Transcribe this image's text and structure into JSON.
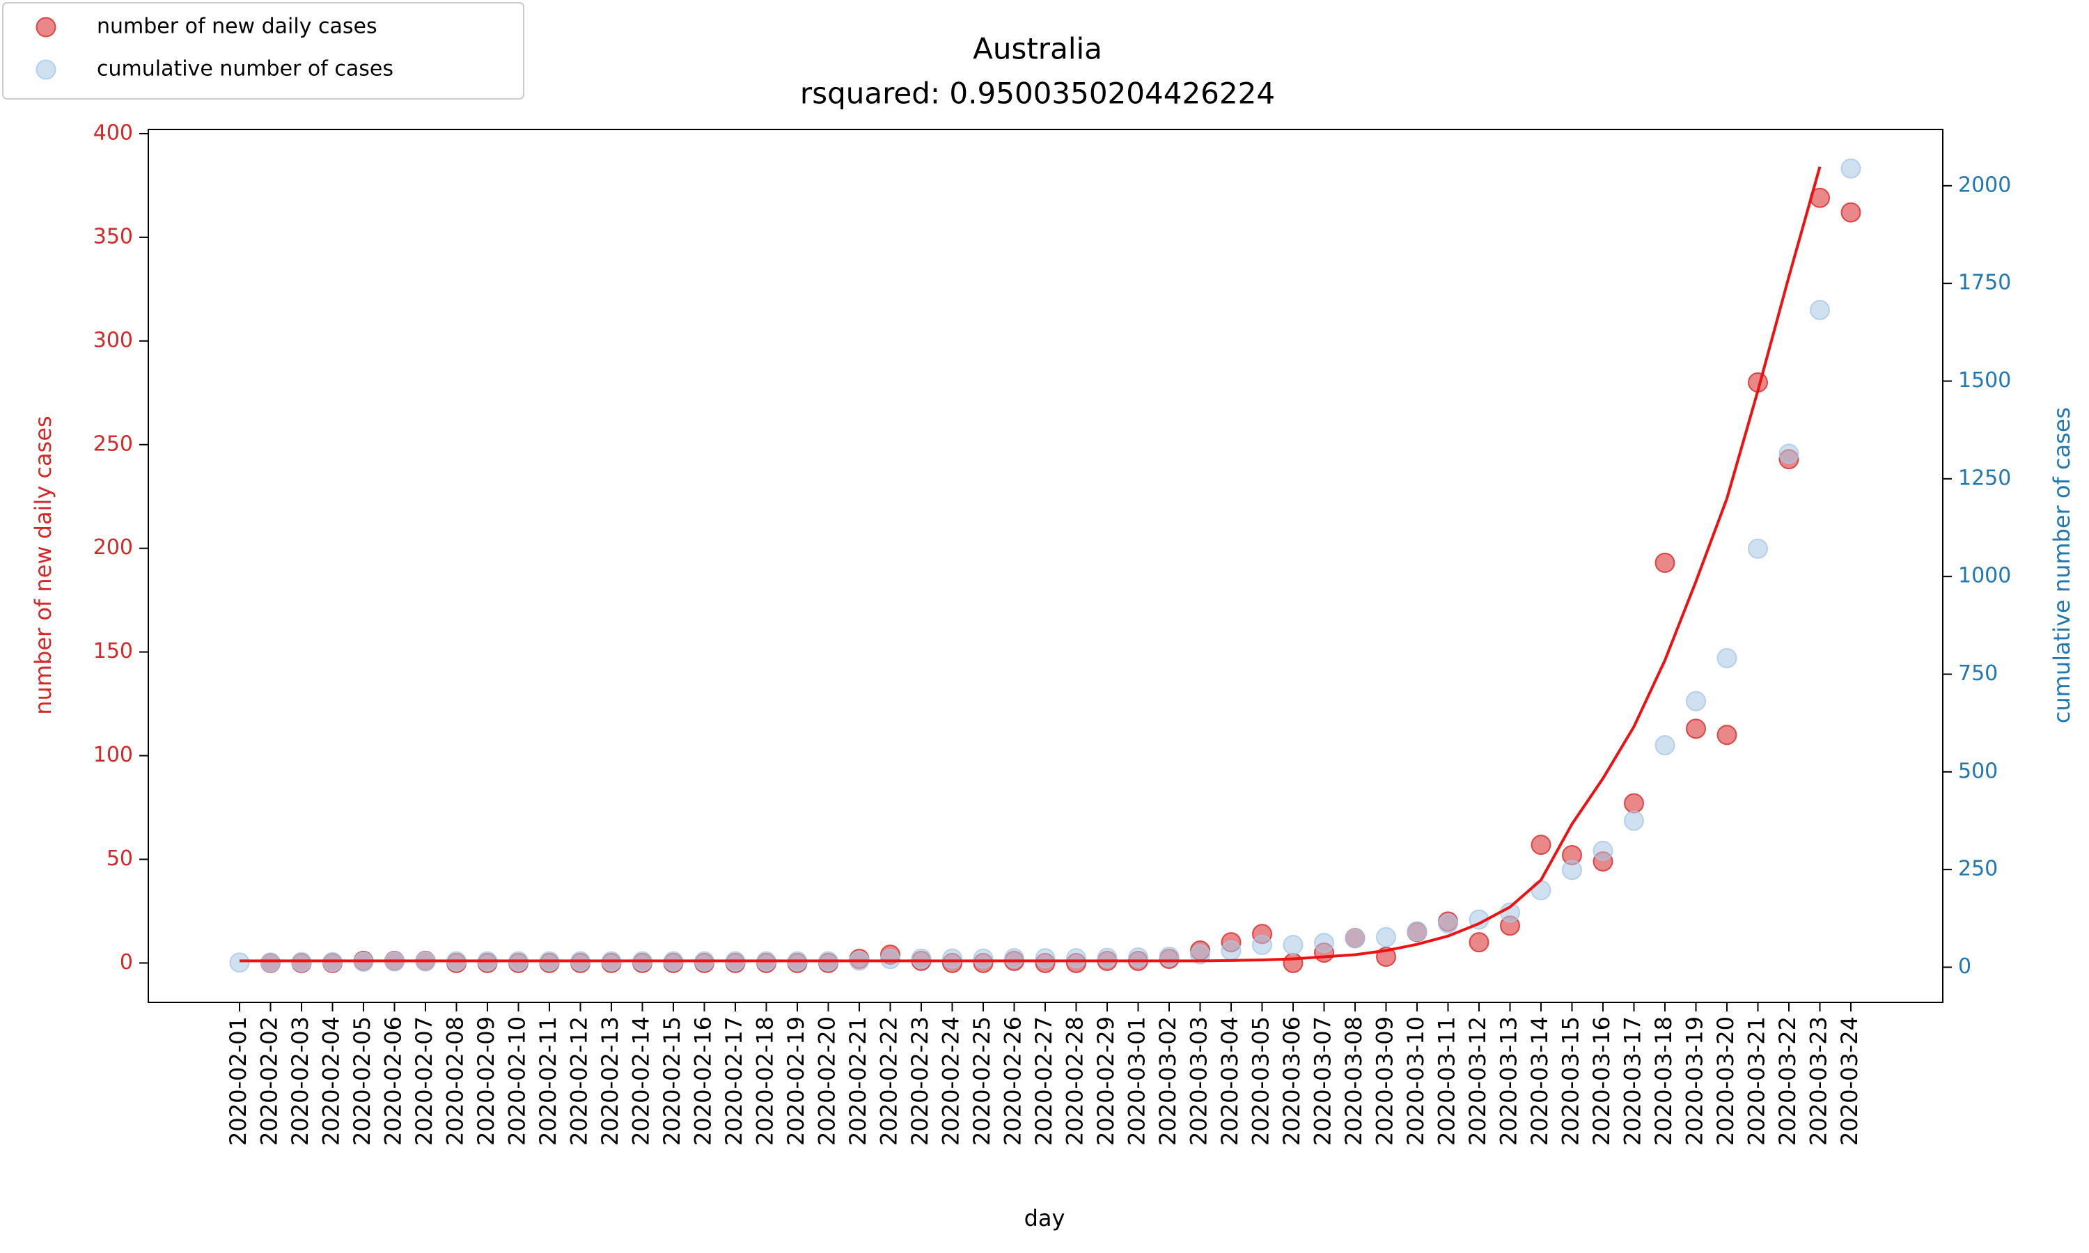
{
  "chart_data": {
    "type": "scatter",
    "title": "Australia",
    "subtitle": "rsquared: 0.9500350204426224",
    "xlabel": "day",
    "ylabel": "number of new daily cases",
    "y2label": "cumulative number of cases",
    "categories": [
      "2020-02-01",
      "2020-02-02",
      "2020-02-03",
      "2020-02-04",
      "2020-02-05",
      "2020-02-06",
      "2020-02-07",
      "2020-02-08",
      "2020-02-09",
      "2020-02-10",
      "2020-02-11",
      "2020-02-12",
      "2020-02-13",
      "2020-02-14",
      "2020-02-15",
      "2020-02-16",
      "2020-02-17",
      "2020-02-18",
      "2020-02-19",
      "2020-02-20",
      "2020-02-21",
      "2020-02-22",
      "2020-02-23",
      "2020-02-24",
      "2020-02-25",
      "2020-02-26",
      "2020-02-27",
      "2020-02-28",
      "2020-02-29",
      "2020-03-01",
      "2020-03-02",
      "2020-03-03",
      "2020-03-04",
      "2020-03-05",
      "2020-03-06",
      "2020-03-07",
      "2020-03-08",
      "2020-03-09",
      "2020-03-10",
      "2020-03-11",
      "2020-03-12",
      "2020-03-13",
      "2020-03-14",
      "2020-03-15",
      "2020-03-16",
      "2020-03-17",
      "2020-03-18",
      "2020-03-19",
      "2020-03-20",
      "2020-03-21",
      "2020-03-22",
      "2020-03-23",
      "2020-03-24"
    ],
    "series": [
      {
        "name": "number of new daily cases",
        "color": "#d62728",
        "values": [
          null,
          0,
          0,
          0,
          1,
          1,
          1,
          0,
          0,
          0,
          0,
          0,
          0,
          0,
          0,
          0,
          0,
          0,
          0,
          0,
          2,
          4,
          1,
          0,
          0,
          1,
          0,
          0,
          1,
          1,
          2,
          6,
          10,
          14,
          0,
          5,
          12,
          3,
          15,
          20,
          10,
          18,
          57,
          52,
          49,
          77,
          193,
          113,
          110,
          280,
          243,
          369,
          362
        ]
      },
      {
        "name": "cumulative number of cases",
        "color": "#a8c8e6",
        "axis": "y2",
        "values": [
          12,
          12,
          13,
          13,
          14,
          15,
          15,
          15,
          15,
          15,
          15,
          15,
          15,
          15,
          15,
          15,
          15,
          15,
          15,
          15,
          17,
          21,
          22,
          22,
          22,
          23,
          23,
          23,
          24,
          25,
          27,
          33,
          43,
          57,
          57,
          62,
          74,
          77,
          92,
          112,
          122,
          140,
          197,
          249,
          298,
          375,
          568,
          681,
          791,
          1071,
          1314,
          1682,
          2044
        ]
      },
      {
        "type": "line",
        "color": "#ee1111",
        "values": [
          1,
          1,
          1,
          1,
          1,
          1,
          1,
          1,
          1,
          1,
          1,
          1,
          1,
          1,
          1,
          1,
          1,
          1,
          1,
          1,
          1,
          1,
          1,
          1,
          1,
          1,
          1,
          1,
          1,
          1,
          1,
          1,
          1.2,
          1.5,
          2,
          3,
          4,
          6,
          9,
          13,
          19,
          27,
          40,
          67,
          89,
          114,
          146,
          184,
          224,
          276,
          331,
          384,
          null
        ]
      }
    ],
    "ylim": [
      -19,
      402
    ],
    "yticks": [
      0,
      50,
      100,
      150,
      200,
      250,
      300,
      350,
      400
    ],
    "y2lim": [
      -90,
      2144
    ],
    "y2ticks": [
      0,
      250,
      500,
      750,
      1000,
      1250,
      1500,
      1750,
      2000
    ],
    "ylabel_color": "#d62728",
    "y2label_color": "#1f77b4",
    "grid": false,
    "legend": "upper left"
  }
}
